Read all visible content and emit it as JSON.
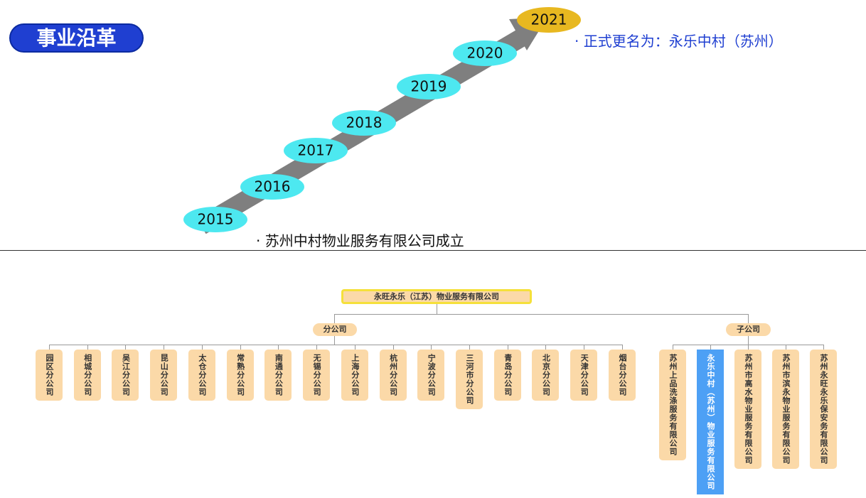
{
  "header": {
    "title": "事业沿革"
  },
  "timeline": {
    "years": [
      "2015",
      "2016",
      "2017",
      "2018",
      "2019",
      "2020",
      "2021"
    ],
    "events": [
      "· 苏州中村物业服务有限公司成立",
      "· 正式更名为：永乐中村（苏州）"
    ]
  },
  "org": {
    "root": "永旺永乐（江苏）物业服务有限公司",
    "branches_label": "分公司",
    "branches": [
      "园区分公司",
      "相城分公司",
      "吴江分公司",
      "昆山分公司",
      "太仓分公司",
      "常熟分公司",
      "南通分公司",
      "无锡分公司",
      "上海分公司",
      "杭州分公司",
      "宁波分公司",
      "三河市分公司",
      "青岛分公司",
      "北京分公司",
      "天津分公司",
      "烟台分公司"
    ],
    "subsidiaries_label": "子公司",
    "subsidiaries": [
      "苏州上品洗涤服务有限公司",
      "永乐中村（苏州）物业服务有限公司",
      "苏州市高水物业服务有限公司",
      "苏州市滨永物业服务有限公司",
      "苏州永旺永乐保安务有限公司"
    ]
  }
}
